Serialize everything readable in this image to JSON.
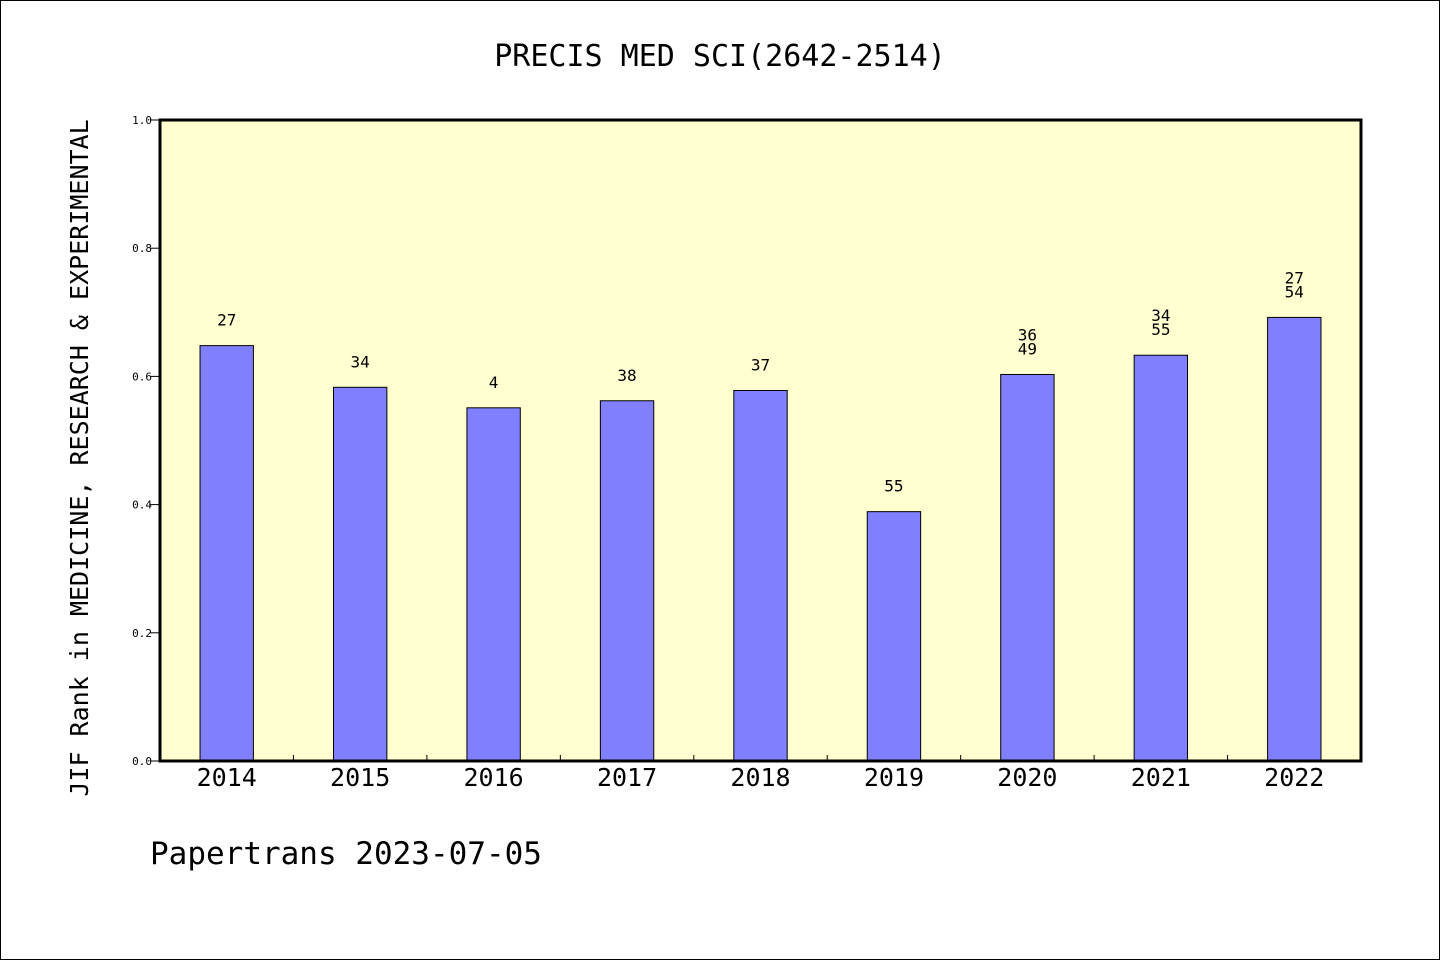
{
  "chart_data": {
    "type": "bar",
    "title": "PRECIS MED SCI(2642-2514)",
    "xlabel": "",
    "ylabel": "JIF Rank in MEDICINE, RESEARCH & EXPERIMENTAL",
    "ylim": [
      0,
      1
    ],
    "yticks": [
      "0.0",
      "0.2",
      "0.4",
      "0.6",
      "0.8",
      "1.0"
    ],
    "categories": [
      "2014",
      "2015",
      "2016",
      "2017",
      "2018",
      "2019",
      "2020",
      "2021",
      "2022"
    ],
    "values": [
      0.648,
      0.583,
      0.551,
      0.562,
      0.578,
      0.389,
      0.603,
      0.633,
      0.692
    ],
    "bar_labels": [
      [
        "27"
      ],
      [
        "34"
      ],
      [
        "4"
      ],
      [
        "38"
      ],
      [
        "37"
      ],
      [
        "55"
      ],
      [
        "36",
        "49"
      ],
      [
        "34",
        "55"
      ],
      [
        "27",
        "54"
      ]
    ],
    "grid": false,
    "colors": {
      "bar": "#8080ff",
      "plot_background": "#ffffd0",
      "axes": "#000000"
    }
  },
  "footer": {
    "text": "Papertrans 2023-07-05"
  }
}
